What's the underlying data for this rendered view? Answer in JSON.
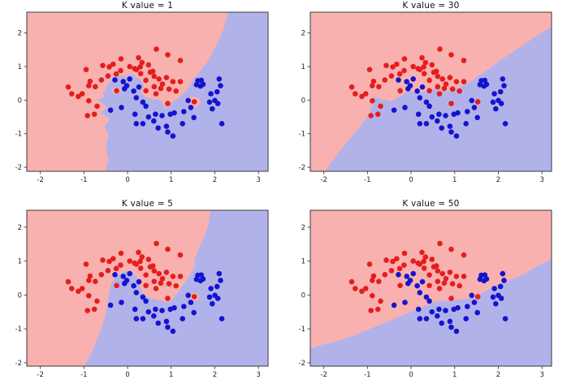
{
  "figure": {
    "background": "#ffffff"
  },
  "chart_data": {
    "type": "scatter",
    "layout": "2x2 grid of KNN decision-boundary plots sharing one dataset",
    "shared": {
      "xlim": [
        -2.31,
        3.22
      ],
      "xticks": [
        -2,
        -1,
        0,
        1,
        2,
        3
      ],
      "xtick_labels": [
        "-2",
        "-1",
        "0",
        "1",
        "2",
        "3"
      ],
      "yticks": [
        2,
        1,
        0,
        -1,
        -2
      ],
      "ytick_labels": [
        "2",
        "1",
        "0",
        "-1",
        "-2"
      ],
      "grid": false,
      "legend": "none",
      "colors": {
        "region_red": "#f8b1af",
        "region_blue": "#b2b2ea",
        "dot_red": "#e51d1d",
        "dot_blue": "#1414cf",
        "frame": "#3a3a3a",
        "tick_text": "#262626",
        "title_text": "#111111"
      },
      "series": [
        {
          "name": "class-red",
          "color": "#e51d1d",
          "points": [
            [
              0.66,
              1.52
            ],
            [
              0.92,
              1.35
            ],
            [
              1.21,
              1.18
            ],
            [
              -0.15,
              1.23
            ],
            [
              0.25,
              1.26
            ],
            [
              0.33,
              1.12
            ],
            [
              -0.57,
              1.03
            ],
            [
              -0.42,
              0.99
            ],
            [
              -0.33,
              1.07
            ],
            [
              -0.16,
              0.88
            ],
            [
              0.05,
              1.0
            ],
            [
              0.16,
              0.94
            ],
            [
              0.29,
              0.99
            ],
            [
              0.48,
              1.05
            ],
            [
              0.58,
              0.86
            ],
            [
              -0.95,
              0.91
            ],
            [
              -0.86,
              0.56
            ],
            [
              -0.74,
              0.4
            ],
            [
              -0.6,
              0.6
            ],
            [
              -0.45,
              0.72
            ],
            [
              -0.26,
              0.78
            ],
            [
              0.2,
              0.91
            ],
            [
              0.3,
              0.79
            ],
            [
              0.52,
              0.83
            ],
            [
              0.61,
              0.71
            ],
            [
              0.42,
              0.59
            ],
            [
              0.72,
              0.63
            ],
            [
              0.8,
              0.48
            ],
            [
              0.89,
              0.67
            ],
            [
              0.76,
              0.35
            ],
            [
              1.04,
              0.55
            ],
            [
              1.21,
              0.55
            ],
            [
              0.95,
              0.33
            ],
            [
              1.11,
              0.27
            ],
            [
              -1.36,
              0.39
            ],
            [
              -1.28,
              0.19
            ],
            [
              -1.13,
              0.11
            ],
            [
              -0.89,
              0.43
            ],
            [
              -1.04,
              0.19
            ],
            [
              -0.89,
              -0.02
            ],
            [
              -0.7,
              -0.18
            ],
            [
              -0.92,
              -0.46
            ],
            [
              -0.76,
              -0.42
            ],
            [
              0.42,
              0.28
            ],
            [
              0.61,
              0.4
            ],
            [
              0.65,
              0.19
            ],
            [
              0.92,
              -0.1
            ],
            [
              1.53,
              -0.05
            ],
            [
              -0.25,
              0.28
            ]
          ]
        },
        {
          "name": "class-blue",
          "color": "#1414cf",
          "points": [
            [
              -0.29,
              0.6
            ],
            [
              -0.1,
              0.55
            ],
            [
              0.05,
              0.63
            ],
            [
              -0.02,
              0.43
            ],
            [
              0.14,
              0.27
            ],
            [
              0.26,
              0.39
            ],
            [
              -0.07,
              0.34
            ],
            [
              0.2,
              0.07
            ],
            [
              0.35,
              -0.06
            ],
            [
              0.42,
              -0.18
            ],
            [
              0.17,
              -0.42
            ],
            [
              -0.39,
              -0.3
            ],
            [
              -0.14,
              -0.22
            ],
            [
              0.48,
              -0.5
            ],
            [
              0.64,
              -0.42
            ],
            [
              0.79,
              -0.46
            ],
            [
              0.98,
              -0.42
            ],
            [
              1.07,
              -0.38
            ],
            [
              1.29,
              -0.34
            ],
            [
              1.45,
              -0.22
            ],
            [
              1.39,
              -0.01
            ],
            [
              0.2,
              -0.7
            ],
            [
              0.35,
              -0.7
            ],
            [
              0.6,
              -0.62
            ],
            [
              0.7,
              -0.83
            ],
            [
              0.89,
              -0.78
            ],
            [
              1.26,
              -0.7
            ],
            [
              1.04,
              -1.07
            ],
            [
              0.92,
              -0.95
            ],
            [
              1.58,
              0.46
            ],
            [
              1.61,
              0.58
            ],
            [
              1.67,
              0.42
            ],
            [
              1.73,
              0.47
            ],
            [
              1.69,
              0.59
            ],
            [
              2.1,
              0.63
            ],
            [
              2.13,
              0.43
            ],
            [
              1.91,
              0.19
            ],
            [
              2.05,
              0.25
            ],
            [
              2.0,
              -0.01
            ],
            [
              1.88,
              -0.06
            ],
            [
              1.94,
              -0.26
            ],
            [
              2.16,
              -0.7
            ],
            [
              2.07,
              -0.1
            ],
            [
              1.52,
              -0.52
            ]
          ]
        }
      ]
    },
    "subplots": [
      {
        "title": "K value = 1",
        "k": 1,
        "row": 0,
        "col": 0,
        "ylim": [
          -2.12,
          2.62
        ],
        "blue_region": [
          [
            -0.51,
            -2.12
          ],
          [
            -0.44,
            -1.75
          ],
          [
            -0.5,
            -1.4
          ],
          [
            -0.44,
            -1.05
          ],
          [
            -0.53,
            -0.8
          ],
          [
            -0.4,
            -0.55
          ],
          [
            -0.63,
            -0.38
          ],
          [
            -0.45,
            -0.22
          ],
          [
            -0.7,
            0.02
          ],
          [
            -0.52,
            0.1
          ],
          [
            -0.58,
            0.22
          ],
          [
            -0.48,
            0.3
          ],
          [
            -0.5,
            0.44
          ],
          [
            -0.4,
            0.52
          ],
          [
            -0.36,
            0.66
          ],
          [
            -0.22,
            0.75
          ],
          [
            -0.05,
            0.7
          ],
          [
            0.08,
            0.79
          ],
          [
            0.22,
            0.69
          ],
          [
            0.33,
            0.56
          ],
          [
            0.38,
            0.42
          ],
          [
            0.32,
            0.32
          ],
          [
            0.3,
            0.22
          ],
          [
            0.38,
            0.12
          ],
          [
            0.48,
            0.06
          ],
          [
            0.6,
            0.02
          ],
          [
            0.72,
            0.02
          ],
          [
            0.8,
            -0.08
          ],
          [
            0.86,
            -0.26
          ],
          [
            0.95,
            -0.18
          ],
          [
            1.02,
            -0.05
          ],
          [
            1.12,
            0.02
          ],
          [
            1.22,
            0.12
          ],
          [
            1.32,
            0.26
          ],
          [
            1.42,
            0.4
          ],
          [
            1.48,
            0.56
          ],
          [
            1.53,
            0.68
          ],
          [
            1.62,
            0.8
          ],
          [
            1.7,
            0.93
          ],
          [
            1.78,
            1.06
          ],
          [
            1.86,
            1.22
          ],
          [
            1.95,
            1.42
          ],
          [
            2.03,
            1.62
          ],
          [
            2.12,
            1.86
          ],
          [
            2.2,
            2.12
          ],
          [
            2.26,
            2.38
          ],
          [
            2.3,
            2.62
          ],
          [
            3.22,
            2.62
          ],
          [
            3.22,
            -2.12
          ]
        ],
        "red_islands": [
          {
            "cx": -0.25,
            "cy": 0.28,
            "rx": 0.1,
            "ry": 0.1
          },
          {
            "cx": 1.53,
            "cy": -0.05,
            "rx": 0.14,
            "ry": 0.15
          }
        ]
      },
      {
        "title": "K value = 30",
        "k": 30,
        "row": 0,
        "col": 1,
        "ylim": [
          -2.12,
          2.62
        ],
        "blue_region": [
          [
            -1.97,
            -2.12
          ],
          [
            -1.75,
            -1.72
          ],
          [
            -1.5,
            -1.3
          ],
          [
            -1.25,
            -0.92
          ],
          [
            -1.05,
            -0.6
          ],
          [
            -0.93,
            -0.3
          ],
          [
            -0.88,
            -0.05
          ],
          [
            -0.86,
            0.12
          ],
          [
            -0.66,
            0.02
          ],
          [
            -0.46,
            -0.04
          ],
          [
            -0.25,
            0.12
          ],
          [
            -0.06,
            0.28
          ],
          [
            0.15,
            0.2
          ],
          [
            0.35,
            0.28
          ],
          [
            0.57,
            0.36
          ],
          [
            0.75,
            0.26
          ],
          [
            0.9,
            0.28
          ],
          [
            1.0,
            0.32
          ],
          [
            1.18,
            0.44
          ],
          [
            1.37,
            0.56
          ],
          [
            1.55,
            0.72
          ],
          [
            1.74,
            0.89
          ],
          [
            1.93,
            1.07
          ],
          [
            2.12,
            1.25
          ],
          [
            2.3,
            1.41
          ],
          [
            2.49,
            1.57
          ],
          [
            2.67,
            1.73
          ],
          [
            2.86,
            1.9
          ],
          [
            3.04,
            2.04
          ],
          [
            3.22,
            2.18
          ],
          [
            3.22,
            -2.12
          ]
        ],
        "red_islands": []
      },
      {
        "title": "K value = 5",
        "k": 5,
        "row": 1,
        "col": 0,
        "ylim": [
          -2.1,
          2.5
        ],
        "blue_region": [
          [
            -1.0,
            -2.1
          ],
          [
            -0.82,
            -1.7
          ],
          [
            -0.7,
            -1.3
          ],
          [
            -0.58,
            -0.92
          ],
          [
            -0.51,
            -0.6
          ],
          [
            -0.47,
            -0.3
          ],
          [
            -0.44,
            -0.05
          ],
          [
            -0.4,
            0.2
          ],
          [
            -0.36,
            0.38
          ],
          [
            -0.28,
            0.52
          ],
          [
            -0.16,
            0.64
          ],
          [
            -0.02,
            0.71
          ],
          [
            0.1,
            0.68
          ],
          [
            0.18,
            0.57
          ],
          [
            0.25,
            0.42
          ],
          [
            0.29,
            0.25
          ],
          [
            0.34,
            0.08
          ],
          [
            0.42,
            -0.03
          ],
          [
            0.54,
            -0.1
          ],
          [
            0.68,
            -0.14
          ],
          [
            0.8,
            -0.18
          ],
          [
            0.95,
            -0.22
          ],
          [
            1.03,
            -0.12
          ],
          [
            1.12,
            0.02
          ],
          [
            1.22,
            0.2
          ],
          [
            1.32,
            0.38
          ],
          [
            1.41,
            0.56
          ],
          [
            1.49,
            0.72
          ],
          [
            1.56,
            0.88
          ],
          [
            1.52,
            1.02
          ],
          [
            1.57,
            1.18
          ],
          [
            1.64,
            1.38
          ],
          [
            1.72,
            1.6
          ],
          [
            1.8,
            1.85
          ],
          [
            1.86,
            2.12
          ],
          [
            1.9,
            2.5
          ],
          [
            3.22,
            2.5
          ],
          [
            3.22,
            -2.1
          ]
        ],
        "red_islands": [
          {
            "cx": -0.25,
            "cy": 0.28,
            "rx": 0.07,
            "ry": 0.07
          },
          {
            "cx": 1.53,
            "cy": -0.05,
            "rx": 0.11,
            "ry": 0.11
          }
        ]
      },
      {
        "title": "K value = 50",
        "k": 50,
        "row": 1,
        "col": 1,
        "ylim": [
          -2.1,
          2.5
        ],
        "blue_region": [
          [
            -2.31,
            -1.59
          ],
          [
            -2.07,
            -1.48
          ],
          [
            -1.7,
            -1.36
          ],
          [
            -1.33,
            -1.21
          ],
          [
            -0.96,
            -1.01
          ],
          [
            -0.58,
            -0.81
          ],
          [
            -0.21,
            -0.61
          ],
          [
            0.16,
            -0.41
          ],
          [
            0.53,
            -0.21
          ],
          [
            0.9,
            -0.16
          ],
          [
            1.2,
            -0.12
          ],
          [
            1.42,
            -0.08
          ],
          [
            1.66,
            0.08
          ],
          [
            1.9,
            0.25
          ],
          [
            2.12,
            0.37
          ],
          [
            2.35,
            0.48
          ],
          [
            2.6,
            0.63
          ],
          [
            2.9,
            0.85
          ],
          [
            3.22,
            1.07
          ],
          [
            3.22,
            -2.1
          ],
          [
            -2.31,
            -2.1
          ]
        ],
        "red_islands": []
      }
    ]
  }
}
